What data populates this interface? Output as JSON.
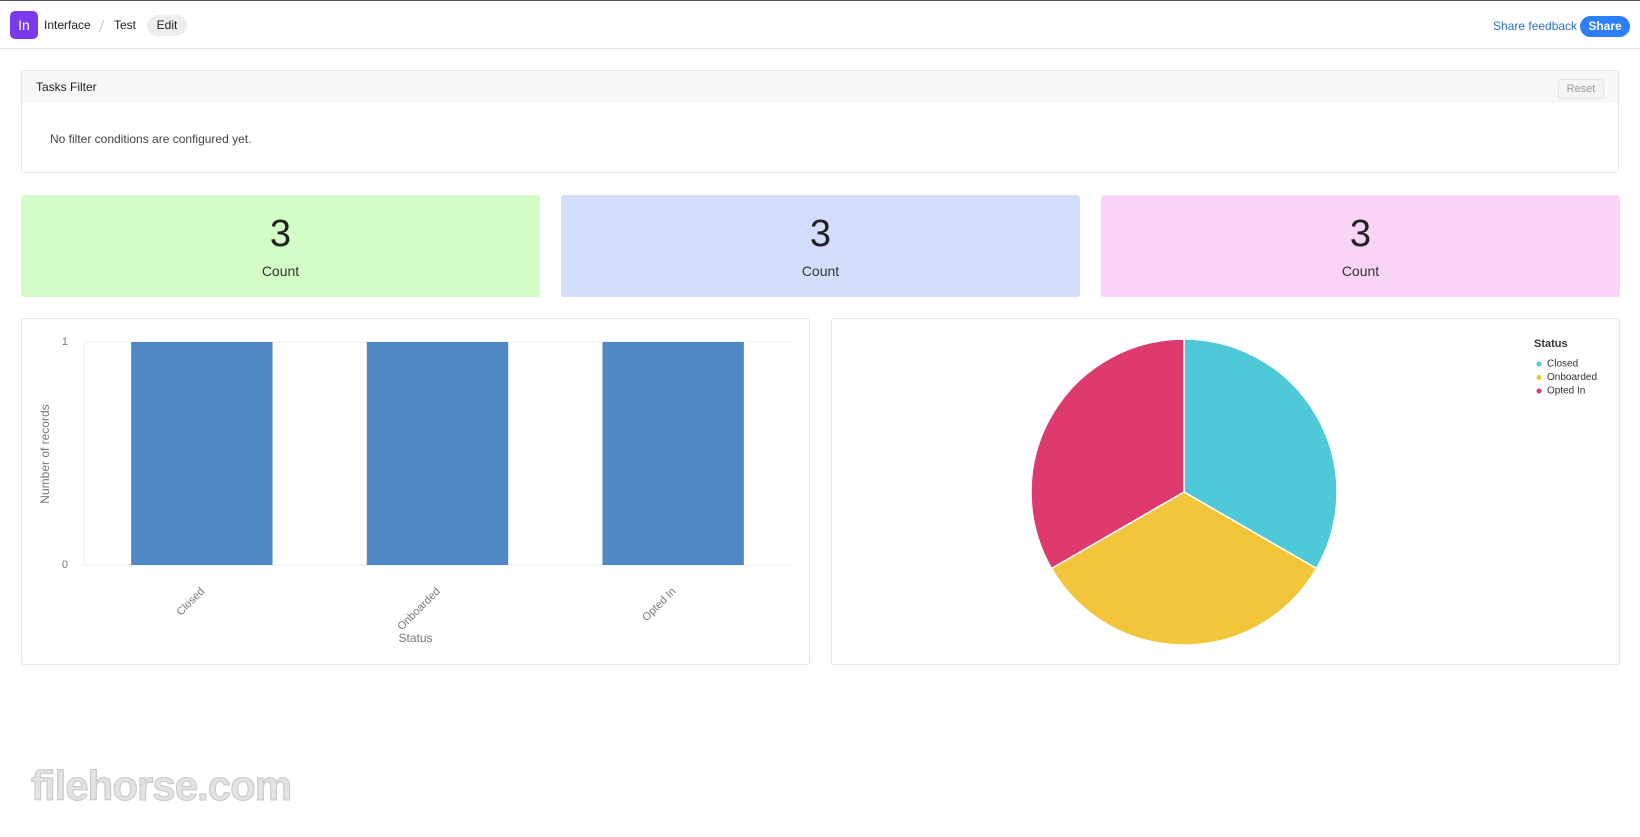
{
  "header": {
    "logo": "In",
    "breadcrumb": [
      "Interface",
      "Test"
    ],
    "edit": "Edit",
    "feedback": "Share feedback",
    "share": "Share"
  },
  "filter": {
    "title": "Tasks Filter",
    "reset": "Reset",
    "message": "No filter conditions are configured yet."
  },
  "metrics": [
    {
      "value": 3,
      "label": "Count",
      "color": "#d3fcc6"
    },
    {
      "value": 3,
      "label": "Count",
      "color": "#d2defc"
    },
    {
      "value": 3,
      "label": "Count",
      "color": "#fad4f6"
    }
  ],
  "chart_data": [
    {
      "type": "bar",
      "categories": [
        "Closed",
        "Onboarded",
        "Opted In"
      ],
      "values": [
        1,
        1,
        1
      ],
      "color": "#4e88c7",
      "ylim": [
        0,
        1
      ],
      "yticks": [
        0,
        1
      ],
      "grid": true,
      "x_label": "Status",
      "y_label": "Number of records"
    },
    {
      "type": "pie",
      "legend_title": "Status",
      "legend": "top-right",
      "categories": [
        "Closed",
        "Onboarded",
        "Opted In"
      ],
      "values": [
        1,
        1,
        1
      ],
      "colors": [
        "#4fc8d8",
        "#f2c53a",
        "#de3a6e"
      ]
    }
  ],
  "watermark": "filehorse.com"
}
